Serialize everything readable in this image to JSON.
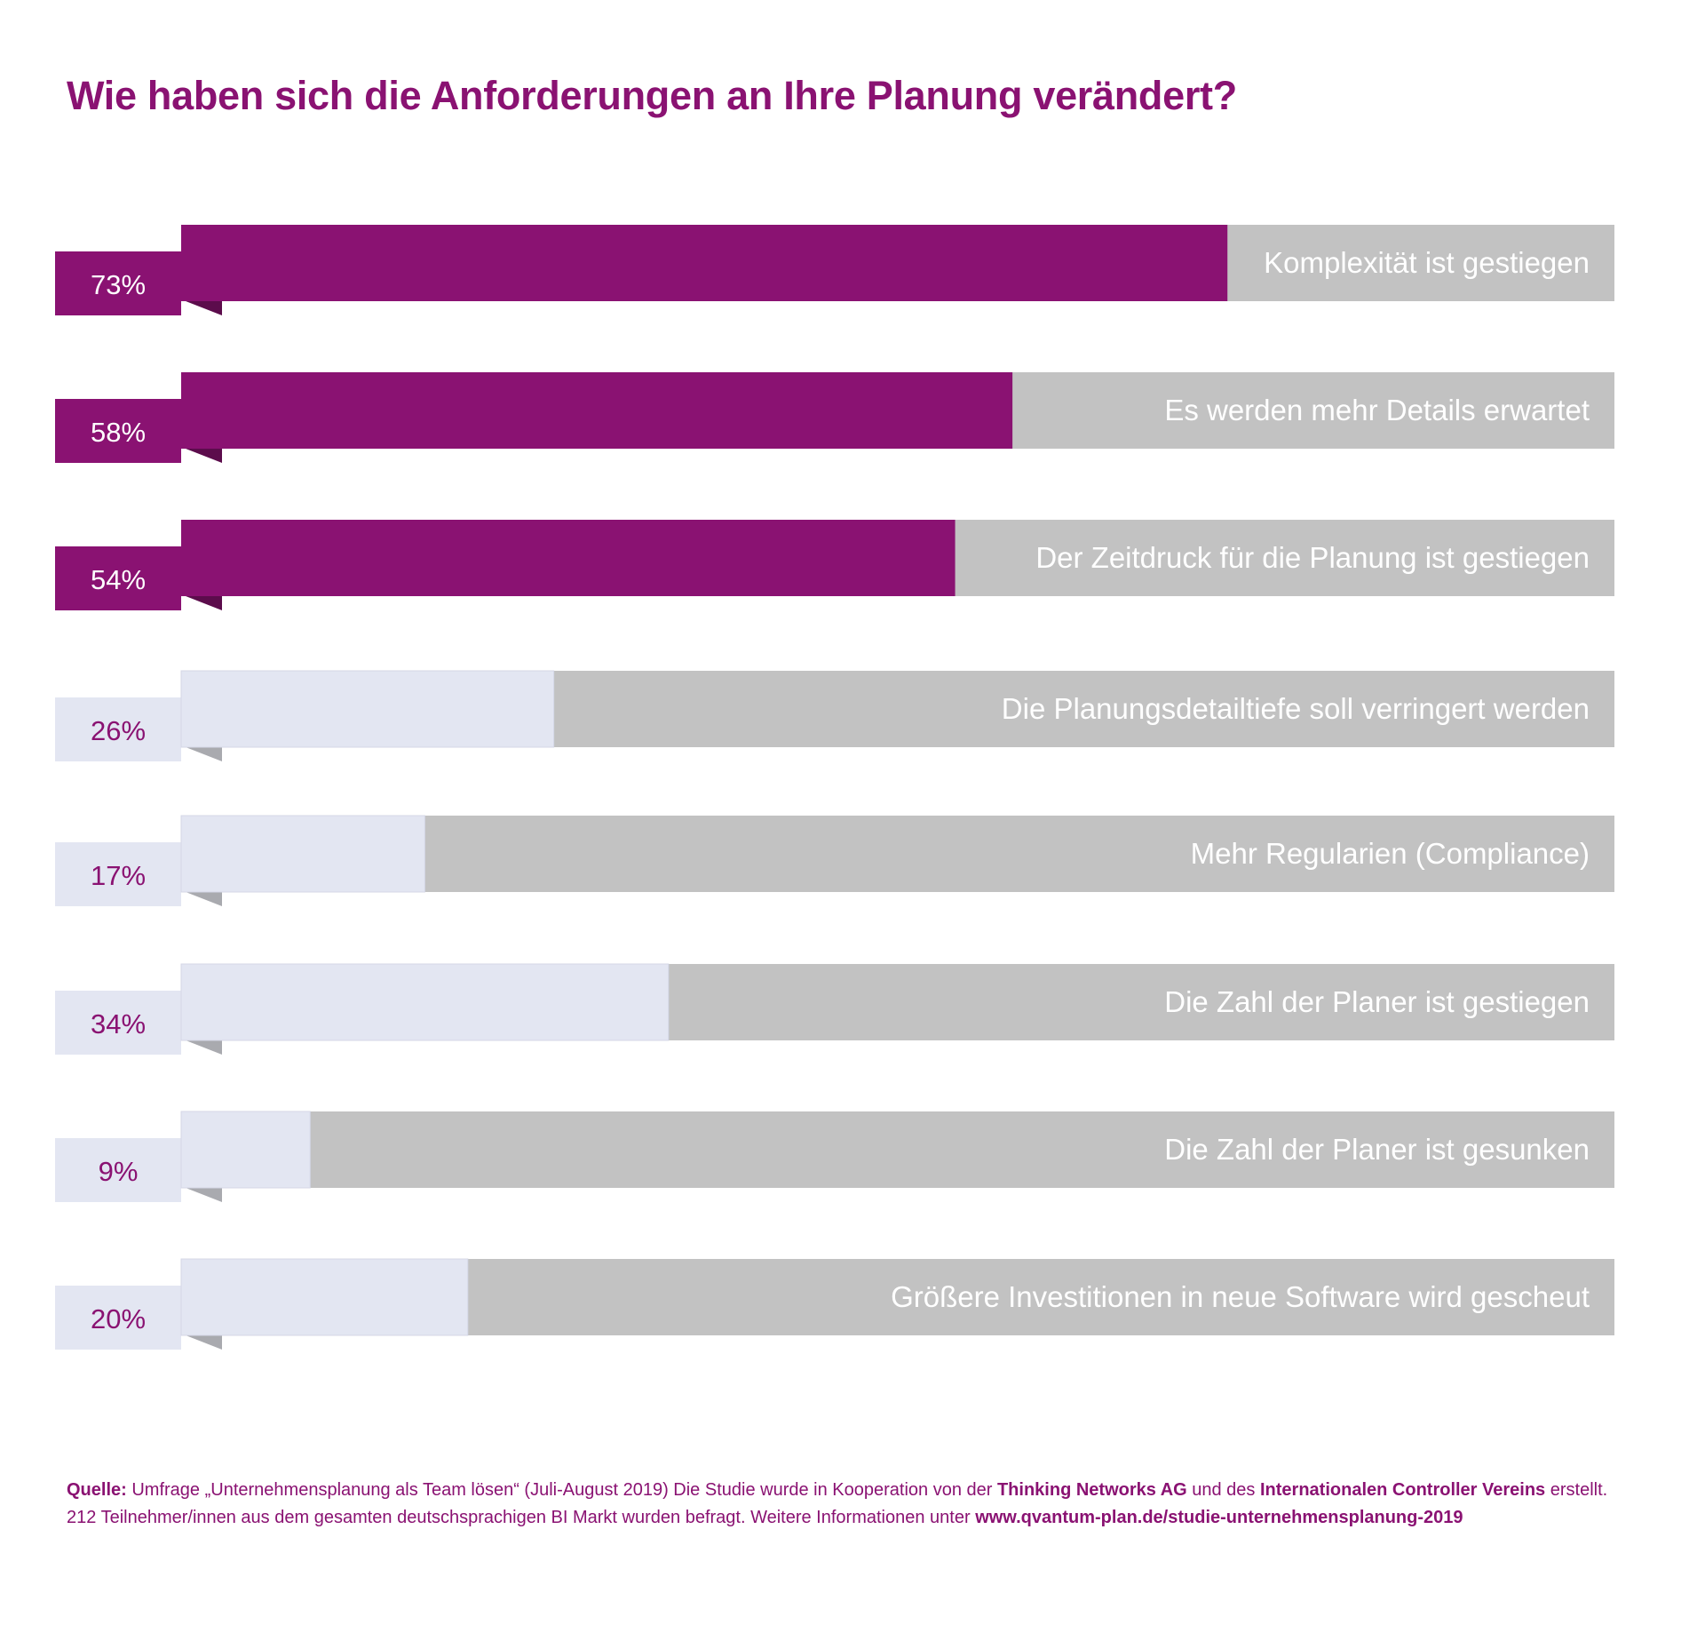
{
  "title": "Wie haben sich die Anforderungen an Ihre Planung verändert?",
  "colors": {
    "highlight_fill": "#8a1272",
    "highlight_fold": "#5c0c4c",
    "muted_fill": "#e3e6f2",
    "muted_fold": "#a9aaaf",
    "track": "#c2c2c2",
    "label_text": "#ffffff",
    "title": "#8a1272"
  },
  "chart_data": {
    "type": "bar",
    "orientation": "horizontal",
    "xlim": [
      0,
      100
    ],
    "unit": "%",
    "categories": [
      "Komplexität  ist gestiegen",
      "Es werden mehr Details erwartet",
      "Der Zeitdruck für die Planung ist gestiegen",
      "Die Planungsdetailtiefe soll verringert werden",
      "Mehr Regularien (Compliance)",
      "Die Zahl der Planer ist gestiegen",
      "Die Zahl der Planer ist gesunken",
      "Größere Investitionen in neue Software wird gescheut"
    ],
    "values": [
      73,
      58,
      54,
      26,
      17,
      34,
      9,
      20
    ],
    "value_labels": [
      "73%",
      "58%",
      "54%",
      "26%",
      "17%",
      "34%",
      "9%",
      "20%"
    ],
    "highlighted": [
      true,
      true,
      true,
      false,
      false,
      false,
      false,
      false
    ]
  },
  "source": {
    "label": "Quelle:",
    "text1": " Umfrage „Unternehmensplanung als Team lösen“ (Juli-August 2019)  Die Studie wurde in Kooperation von der ",
    "org1": "Thinking Networks AG",
    "text2": " und des ",
    "org2": "Internationalen Controller Vereins",
    "text3": " erstellt.",
    "text4": "212 Teilnehmer/innen aus dem gesamten deutschsprachigen BI Markt wurden befragt. Weitere Informationen unter ",
    "url": "www.qvantum-plan.de/studie-unternehmensplanung-2019"
  }
}
